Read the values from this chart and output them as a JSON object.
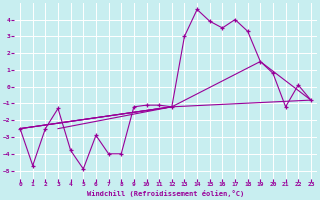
{
  "xlabel": "Windchill (Refroidissement éolien,°C)",
  "background_color": "#c8eef0",
  "line_color": "#990099",
  "grid_color": "#ffffff",
  "xlim": [
    -0.5,
    23.5
  ],
  "ylim": [
    -5.5,
    5.0
  ],
  "xticks": [
    0,
    1,
    2,
    3,
    4,
    5,
    6,
    7,
    8,
    9,
    10,
    11,
    12,
    13,
    14,
    15,
    16,
    17,
    18,
    19,
    20,
    21,
    22,
    23
  ],
  "yticks": [
    -5,
    -4,
    -3,
    -2,
    -1,
    0,
    1,
    2,
    3,
    4
  ],
  "main_x": [
    0,
    1,
    2,
    3,
    4,
    5,
    6,
    7,
    8,
    9,
    10,
    11,
    12,
    13,
    14,
    15,
    16,
    17,
    18,
    19,
    20,
    21,
    22,
    23
  ],
  "main_y": [
    -2.5,
    -4.7,
    -2.5,
    -1.3,
    -3.8,
    -4.9,
    -2.9,
    -4.0,
    -4.0,
    -1.2,
    -1.1,
    -1.1,
    -1.2,
    3.0,
    4.6,
    3.9,
    3.5,
    4.0,
    3.3,
    1.5,
    0.8,
    -1.2,
    0.1,
    -0.8
  ],
  "line1_x": [
    0,
    12
  ],
  "line1_y": [
    -2.5,
    -1.2
  ],
  "line2_x": [
    3,
    12
  ],
  "line2_y": [
    -2.5,
    -1.2
  ],
  "line3_x": [
    0,
    12,
    23
  ],
  "line3_y": [
    -2.5,
    -1.2,
    -0.8
  ],
  "line4_x": [
    0,
    12,
    19,
    23
  ],
  "line4_y": [
    -2.5,
    -1.2,
    1.5,
    -0.8
  ]
}
